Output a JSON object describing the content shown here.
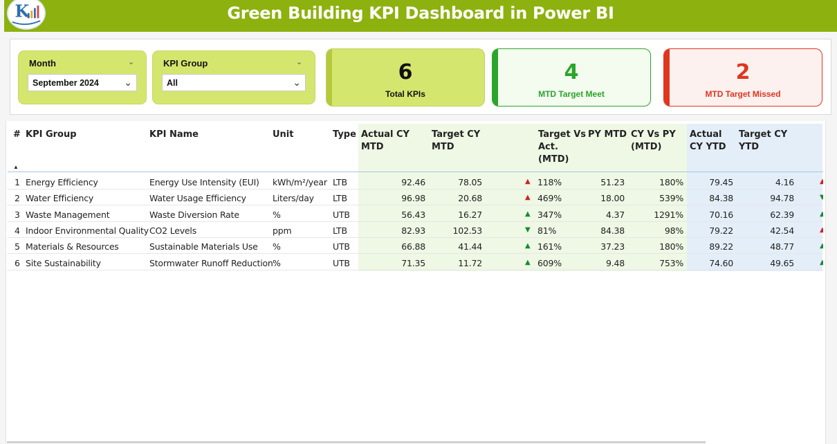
{
  "header": {
    "title": "Green Building KPI Dashboard in Power BI"
  },
  "filters": {
    "month": {
      "label": "Month",
      "value": "September 2024"
    },
    "kpi_group": {
      "label": "KPI Group",
      "value": "All"
    }
  },
  "cards": {
    "total": {
      "value": "6",
      "label": "Total KPIs",
      "color": "#111111"
    },
    "meet": {
      "value": "4",
      "label": "MTD Target Meet",
      "color": "#2aa52a"
    },
    "missed": {
      "value": "2",
      "label": "MTD Target Missed",
      "color": "#e0351e"
    }
  },
  "table": {
    "columns": {
      "idx": "#",
      "group": "KPI Group",
      "name": "KPI Name",
      "unit": "Unit",
      "type": "Type",
      "actual_mtd": "Actual CY MTD",
      "target_mtd": "Target CY MTD",
      "tva_mtd": "Target Vs Act. (MTD)",
      "py_mtd": "PY MTD",
      "cy_vs_py": "CY Vs PY (MTD)",
      "actual_ytd": "Actual CY YTD",
      "target_ytd": "Target CY YTD"
    },
    "rows": [
      {
        "idx": "1",
        "group": "Energy Efficiency",
        "name": "Energy Use Intensity (EUI)",
        "unit": "kWh/m²/year",
        "type": "LTB",
        "actual_mtd": "92.46",
        "target_mtd": "78.05",
        "arrow": "up-red",
        "tva": "118%",
        "py_mtd": "51.23",
        "cy_vs_py": "180%",
        "actual_ytd": "79.45",
        "target_ytd": "4.16",
        "ytd_arrow": "up-red"
      },
      {
        "idx": "2",
        "group": "Water Efficiency",
        "name": "Water Usage Efficiency",
        "unit": "Liters/day",
        "type": "LTB",
        "actual_mtd": "96.98",
        "target_mtd": "20.68",
        "arrow": "up-red",
        "tva": "469%",
        "py_mtd": "18.00",
        "cy_vs_py": "539%",
        "actual_ytd": "84.38",
        "target_ytd": "94.78",
        "ytd_arrow": "down-green"
      },
      {
        "idx": "3",
        "group": "Waste Management",
        "name": "Waste Diversion Rate",
        "unit": "%",
        "type": "UTB",
        "actual_mtd": "56.43",
        "target_mtd": "16.27",
        "arrow": "up-green",
        "tva": "347%",
        "py_mtd": "4.37",
        "cy_vs_py": "1291%",
        "actual_ytd": "70.16",
        "target_ytd": "62.39",
        "ytd_arrow": "up-green"
      },
      {
        "idx": "4",
        "group": "Indoor Environmental Quality",
        "name": "CO2 Levels",
        "unit": "ppm",
        "type": "LTB",
        "actual_mtd": "82.93",
        "target_mtd": "102.53",
        "arrow": "down-green",
        "tva": "81%",
        "py_mtd": "84.38",
        "cy_vs_py": "98%",
        "actual_ytd": "79.22",
        "target_ytd": "42.54",
        "ytd_arrow": "up-red"
      },
      {
        "idx": "5",
        "group": "Materials & Resources",
        "name": "Sustainable Materials Use",
        "unit": "%",
        "type": "UTB",
        "actual_mtd": "66.88",
        "target_mtd": "41.44",
        "arrow": "up-green",
        "tva": "161%",
        "py_mtd": "37.23",
        "cy_vs_py": "180%",
        "actual_ytd": "89.22",
        "target_ytd": "48.77",
        "ytd_arrow": "up-green"
      },
      {
        "idx": "6",
        "group": "Site Sustainability",
        "name": "Stormwater Runoff Reduction",
        "unit": "%",
        "type": "UTB",
        "actual_mtd": "71.35",
        "target_mtd": "11.72",
        "arrow": "up-green",
        "tva": "609%",
        "py_mtd": "9.48",
        "cy_vs_py": "753%",
        "actual_ytd": "74.60",
        "target_ytd": "49.65",
        "ytd_arrow": "up-green"
      }
    ]
  },
  "colors": {
    "header_bg": "#8db10e",
    "slicer_bg": "#d5e66e",
    "mtd_band": "#eef8e4",
    "ytd_band": "#e3eef9"
  }
}
